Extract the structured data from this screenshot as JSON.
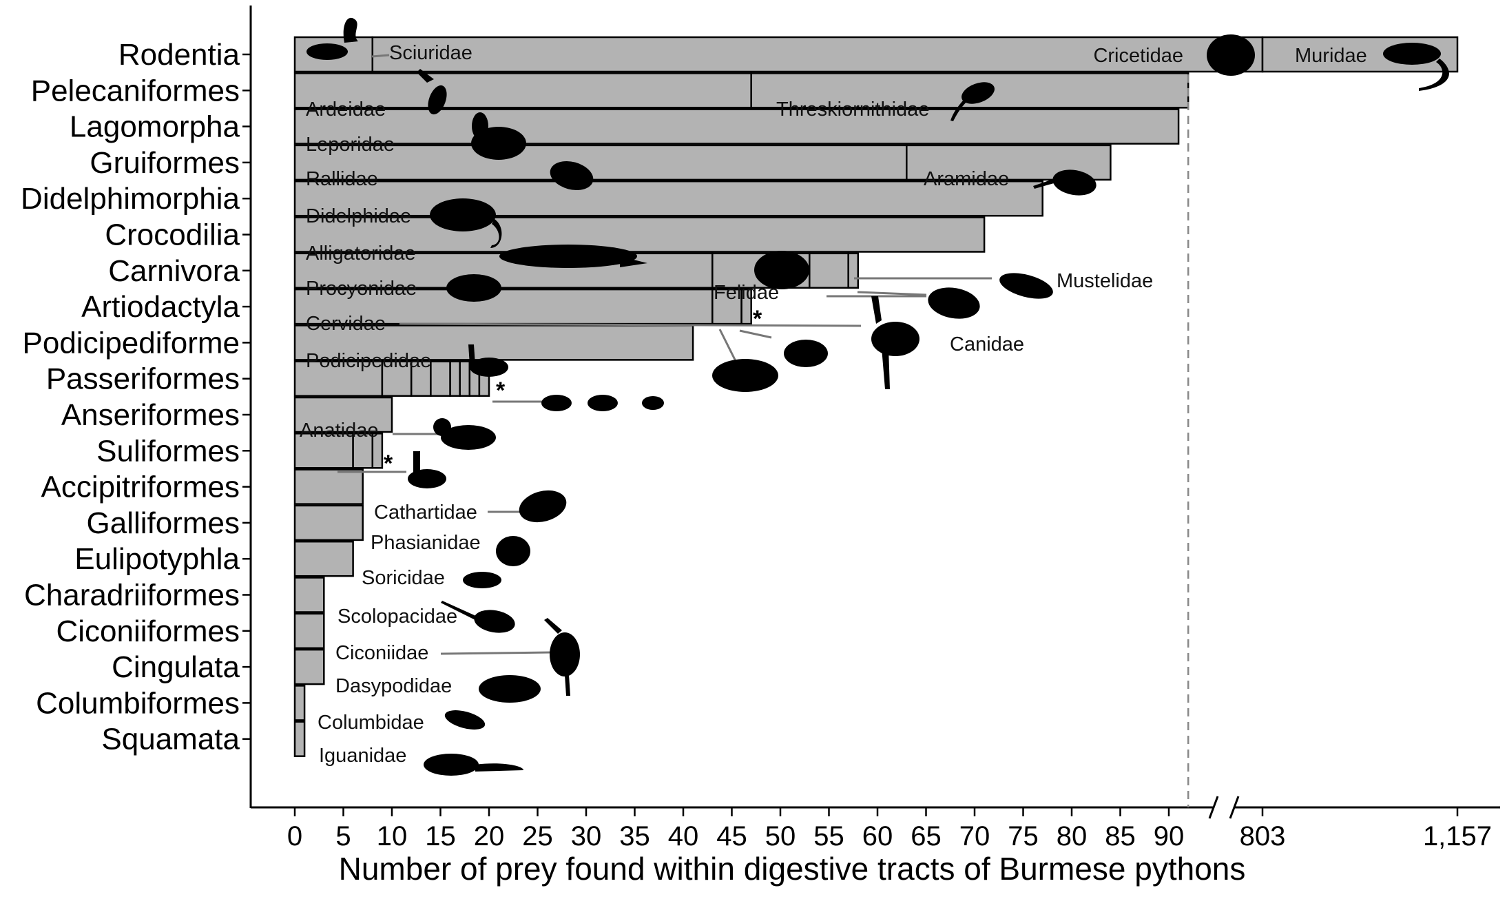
{
  "chart_data": {
    "type": "bar",
    "orientation": "horizontal",
    "stacked": true,
    "xlabel": "Number of prey found within digestive tracts of Burmese pythons",
    "ylabel": "",
    "grid": false,
    "axis_break": true,
    "xlim": [
      0,
      92
    ],
    "x_ticks": [
      "0",
      "5",
      "10",
      "15",
      "20",
      "25",
      "30",
      "35",
      "40",
      "45",
      "50",
      "55",
      "60",
      "65",
      "70",
      "75",
      "80",
      "85",
      "90"
    ],
    "x_break_ticks": [
      "803",
      "1,157"
    ],
    "bar_color": "#b3b3b3",
    "categories": [
      "Rodentia",
      "Pelecaniformes",
      "Lagomorpha",
      "Gruiformes",
      "Didelphimorphia",
      "Crocodilia",
      "Carnivora",
      "Artiodactyla",
      "Podicipediforme",
      "Passeriformes",
      "Anseriformes",
      "Suliformes",
      "Accipitriformes",
      "Galliformes",
      "Eulipotyphla",
      "Charadriiformes",
      "Ciconiiformes",
      "Cingulata",
      "Columbiformes",
      "Squamata"
    ],
    "totals": [
      1157,
      92,
      91,
      84,
      77,
      71,
      58,
      47,
      41,
      20,
      10,
      9,
      7,
      7,
      6,
      3,
      3,
      3,
      1,
      1
    ],
    "segments": [
      [
        {
          "family": "Sciuridae",
          "value": 8
        },
        {
          "family": "Cricetidae",
          "value": 803
        },
        {
          "family": "Muridae",
          "value": 346
        }
      ],
      [
        {
          "family": "Ardeidae",
          "value": 47
        },
        {
          "family": "Threskiornithidae",
          "value": 45
        }
      ],
      [
        {
          "family": "Leporidae",
          "value": 91
        }
      ],
      [
        {
          "family": "Rallidae",
          "value": 63
        },
        {
          "family": "Aramidae",
          "value": 21
        }
      ],
      [
        {
          "family": "Didelphidae",
          "value": 77
        }
      ],
      [
        {
          "family": "Alligatoridae",
          "value": 71
        }
      ],
      [
        {
          "family": "Procyonidae",
          "value": 43
        },
        {
          "family": "Felidae",
          "value": 10
        },
        {
          "family": "Canidae",
          "value": 4
        },
        {
          "family": "Mustelidae",
          "value": 1
        }
      ],
      [
        {
          "family": "Cervidae",
          "value": 43
        },
        {
          "family": "",
          "value": 3
        },
        {
          "family": "",
          "value": 1
        }
      ],
      [
        {
          "family": "Podicipedidae",
          "value": 41
        }
      ],
      [
        {
          "family": "",
          "value": 9
        },
        {
          "family": "",
          "value": 3
        },
        {
          "family": "",
          "value": 2
        },
        {
          "family": "",
          "value": 2
        },
        {
          "family": "",
          "value": 1
        },
        {
          "family": "",
          "value": 1
        },
        {
          "family": "",
          "value": 1
        },
        {
          "family": "",
          "value": 1
        }
      ],
      [
        {
          "family": "Anatidae",
          "value": 10
        }
      ],
      [
        {
          "family": "",
          "value": 6
        },
        {
          "family": "",
          "value": 2
        },
        {
          "family": "",
          "value": 1
        }
      ],
      [
        {
          "family": "Cathartidae",
          "value": 7
        }
      ],
      [
        {
          "family": "Phasianidae",
          "value": 7
        }
      ],
      [
        {
          "family": "Soricidae",
          "value": 6
        }
      ],
      [
        {
          "family": "Scolopacidae",
          "value": 3
        }
      ],
      [
        {
          "family": "Ciconiidae",
          "value": 3
        }
      ],
      [
        {
          "family": "Dasypodidae",
          "value": 3
        }
      ],
      [
        {
          "family": "Columbidae",
          "value": 1
        }
      ],
      [
        {
          "family": "Iguanidae",
          "value": 1
        }
      ]
    ],
    "annotations": [
      "*",
      "*",
      "*"
    ]
  }
}
